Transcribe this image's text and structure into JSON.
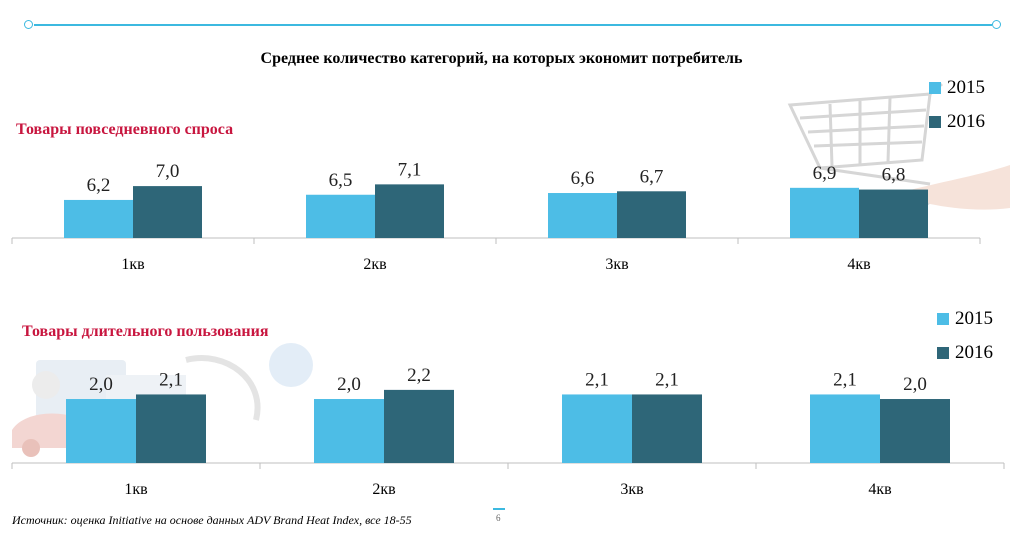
{
  "title": "Среднее количество категорий, на которых экономит потребитель",
  "source": "Источник: оценка Initiative на основе данных ADV Brand Heat Index, все 18-55",
  "page_number": "6",
  "colors": {
    "series_2015": "#4dbde6",
    "series_2016": "#2e6678",
    "accent": "#3cb9e0",
    "label": "#c8163f"
  },
  "chart_data": [
    {
      "type": "bar",
      "label": "Товары повседневного спроса",
      "categories": [
        "1кв",
        "2кв",
        "3кв",
        "4кв"
      ],
      "series": [
        {
          "name": "2015",
          "values": [
            6.2,
            6.5,
            6.6,
            6.9
          ],
          "labels": [
            "6,2",
            "6,5",
            "6,6",
            "6,9"
          ]
        },
        {
          "name": "2016",
          "values": [
            7.0,
            7.1,
            6.7,
            6.8
          ],
          "labels": [
            "7,0",
            "7,1",
            "6,7",
            "6,8"
          ]
        }
      ],
      "legend": "top-right"
    },
    {
      "type": "bar",
      "label": "Товары длительного пользования",
      "categories": [
        "1кв",
        "2кв",
        "3кв",
        "4кв"
      ],
      "series": [
        {
          "name": "2015",
          "values": [
            2.0,
            2.0,
            2.1,
            2.1
          ],
          "labels": [
            "2,0",
            "2,0",
            "2,1",
            "2,1"
          ]
        },
        {
          "name": "2016",
          "values": [
            2.1,
            2.2,
            2.1,
            2.0
          ],
          "labels": [
            "2,1",
            "2,2",
            "2,1",
            "2,0"
          ]
        }
      ],
      "legend": "top-right"
    }
  ]
}
